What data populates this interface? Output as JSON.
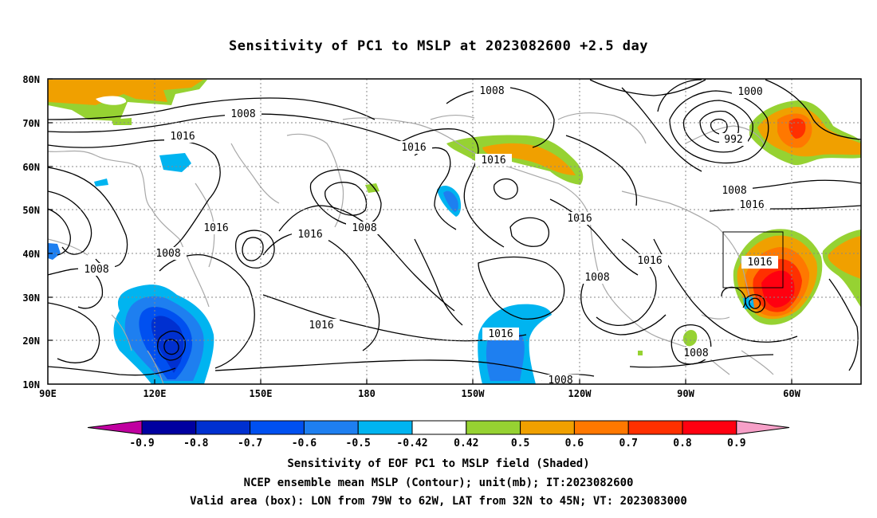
{
  "title": "Sensitivity of PC1 to MSLP at 2023082600 +2.5 day",
  "lat_labels": [
    "80N",
    "70N",
    "60N",
    "50N",
    "40N",
    "30N",
    "20N",
    "10N"
  ],
  "lon_labels": [
    "90E",
    "120E",
    "150E",
    "180",
    "150W",
    "120W",
    "90W",
    "60W"
  ],
  "contour_labels": [
    "1008",
    "1016",
    "1008",
    "1016",
    "1016",
    "1000",
    "992",
    "1008",
    "1016",
    "1016",
    "1008",
    "1016",
    "1016",
    "1008",
    "1016",
    "1008",
    "1016",
    "1008",
    "1016",
    "1016",
    "1008",
    "1016",
    "1008"
  ],
  "colorbar": {
    "labels": [
      "-0.9",
      "-0.8",
      "-0.7",
      "-0.6",
      "-0.5",
      "-0.42",
      "0.42",
      "0.5",
      "0.6",
      "0.7",
      "0.8",
      "0.9"
    ],
    "colors": [
      "#c000a0",
      "#0000a0",
      "#0030d0",
      "#0050f0",
      "#1e7ff0",
      "#00b4f0",
      "#ffffff",
      "#96d232",
      "#f0a000",
      "#ff7800",
      "#ff3000",
      "#ff0010",
      "#f7a0c8"
    ]
  },
  "captions": {
    "line1": "Sensitivity of EOF PC1 to MSLP field (Shaded)",
    "line2": "NCEP ensemble mean MSLP (Contour); unit(mb); IT:2023082600",
    "line3": "Valid area (box): LON from 79W to 62W, LAT from 32N to 45N; VT: 2023083000"
  }
}
